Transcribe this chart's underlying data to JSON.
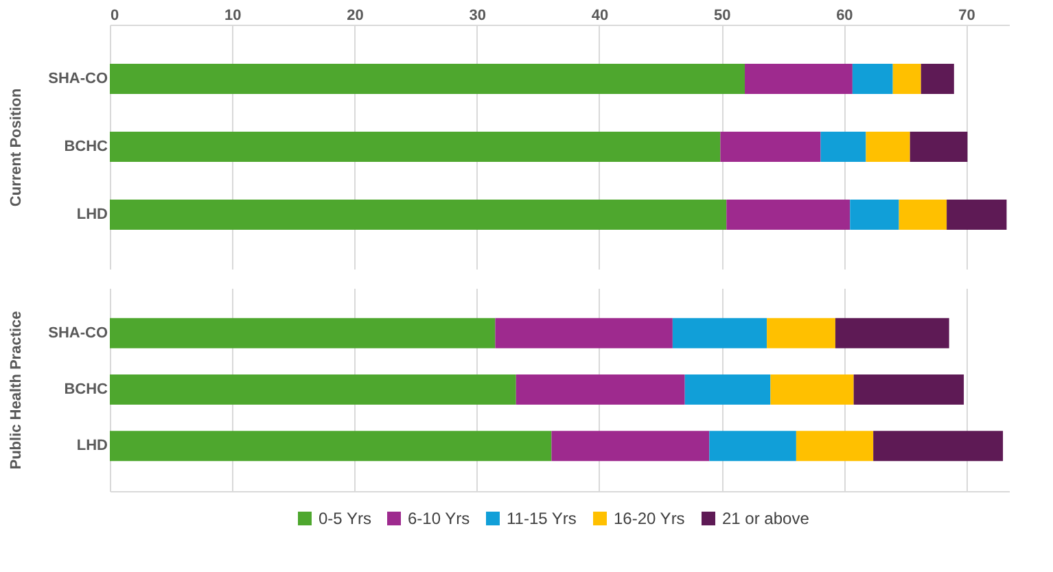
{
  "chart_data": [
    {
      "type": "bar",
      "orientation": "horizontal",
      "stacked": true,
      "ylabel": "Current Position",
      "categories": [
        "SHA-CO",
        "BCHC",
        "LHD"
      ],
      "xlim": [
        0,
        73.5
      ],
      "xticks": [
        0,
        10,
        20,
        30,
        40,
        50,
        60,
        70
      ],
      "grid": "x",
      "series": [
        {
          "color": "#4ea72e",
          "values": [
            51.9,
            49.9,
            50.4
          ]
        },
        {
          "color": "#9e2a8e",
          "values": [
            8.8,
            8.2,
            10.1
          ]
        },
        {
          "color": "#119fd8",
          "values": [
            3.3,
            3.7,
            4.0
          ]
        },
        {
          "color": "#ffc000",
          "values": [
            2.3,
            3.6,
            3.9
          ]
        },
        {
          "color": "#5e1a55",
          "values": [
            2.7,
            4.7,
            4.9
          ]
        }
      ]
    },
    {
      "type": "bar",
      "orientation": "horizontal",
      "stacked": true,
      "ylabel": "Public Health Practice",
      "categories": [
        "SHA-CO",
        "BCHC",
        "LHD"
      ],
      "xlim": [
        0,
        73.5
      ],
      "xticks": [
        0,
        10,
        20,
        30,
        40,
        50,
        60,
        70
      ],
      "grid": "x",
      "tick_labels": "y",
      "legend": "bottom",
      "series": [
        {
          "name": "0-5 Yrs",
          "color": "#4ea72e",
          "values": [
            31.5,
            33.2,
            36.1
          ]
        },
        {
          "name": "6-10 Yrs",
          "color": "#9e2a8e",
          "values": [
            14.5,
            13.8,
            12.9
          ]
        },
        {
          "name": "11-15 Yrs",
          "color": "#119fd8",
          "values": [
            7.7,
            7.0,
            7.1
          ]
        },
        {
          "name": "16-20 Yrs",
          "color": "#ffc000",
          "values": [
            5.6,
            6.8,
            6.3
          ]
        },
        {
          "name": "21 or above",
          "color": "#5e1a55",
          "values": [
            9.3,
            9.0,
            10.6
          ]
        }
      ]
    }
  ]
}
